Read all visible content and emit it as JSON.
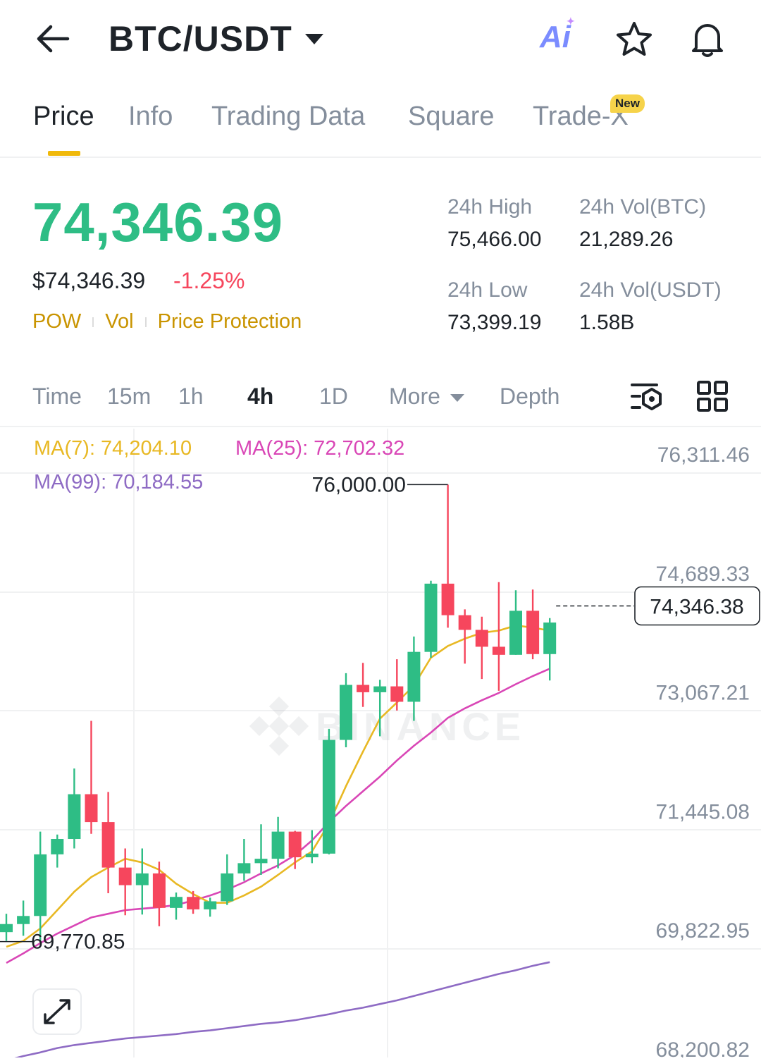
{
  "header": {
    "pair": "BTC/USDT",
    "ai_label": "Ai"
  },
  "tabs": [
    {
      "label": "Price",
      "active": true
    },
    {
      "label": "Info"
    },
    {
      "label": "Trading Data"
    },
    {
      "label": "Square"
    },
    {
      "label": "Trade-X",
      "badge": "New"
    }
  ],
  "ticker": {
    "last_price": "74,346.39",
    "usd_price": "$74,346.39",
    "change_pct": "-1.25%",
    "tags": [
      "POW",
      "Vol",
      "Price Protection"
    ],
    "high_label": "24h High",
    "high": "75,466.00",
    "low_label": "24h Low",
    "low": "73,399.19",
    "vol_btc_label": "24h Vol(BTC)",
    "vol_btc": "21,289.26",
    "vol_usdt_label": "24h Vol(USDT)",
    "vol_usdt": "1.58B"
  },
  "intervals": {
    "items": [
      "Time",
      "15m",
      "1h",
      "4h",
      "1D",
      "More",
      "Depth"
    ],
    "active": "4h"
  },
  "colors": {
    "up": "#2ebd85",
    "down": "#f6465d",
    "ma7": "#e8b823",
    "ma25": "#d946b6",
    "ma99": "#8e6bc4",
    "accent": "#f0b90b"
  },
  "chart_data": {
    "type": "candlestick",
    "interval": "4h",
    "ma7_label": "MA(7): 74,204.10",
    "ma25_label": "MA(25): 72,702.32",
    "ma99_label": "MA(99): 70,184.55",
    "y_ticks": [
      "76,311.46",
      "74,689.33",
      "73,067.21",
      "71,445.08",
      "69,822.95",
      "68,200.82"
    ],
    "ylim": [
      68200.82,
      76311.46
    ],
    "current_price_label": "74,346.38",
    "current_price": 74346.38,
    "high_marker": "76,000.00",
    "low_marker": "69,770.85",
    "watermark": "BINANCE",
    "candles": [
      {
        "o": 69900,
        "c": 70010,
        "h": 70150,
        "l": 69780
      },
      {
        "o": 70010,
        "c": 70120,
        "h": 70330,
        "l": 69850
      },
      {
        "o": 70120,
        "c": 70960,
        "h": 71270,
        "l": 69780
      },
      {
        "o": 70960,
        "c": 71170,
        "h": 71230,
        "l": 70780
      },
      {
        "o": 71170,
        "c": 71780,
        "h": 72130,
        "l": 71040
      },
      {
        "o": 71780,
        "c": 71400,
        "h": 72780,
        "l": 71240
      },
      {
        "o": 71400,
        "c": 70780,
        "h": 71810,
        "l": 70430
      },
      {
        "o": 70780,
        "c": 70540,
        "h": 71040,
        "l": 70130
      },
      {
        "o": 70540,
        "c": 70700,
        "h": 71040,
        "l": 70140
      },
      {
        "o": 70700,
        "c": 70230,
        "h": 70860,
        "l": 69980
      },
      {
        "o": 70230,
        "c": 70380,
        "h": 70440,
        "l": 70070
      },
      {
        "o": 70380,
        "c": 70210,
        "h": 70460,
        "l": 70150
      },
      {
        "o": 70210,
        "c": 70320,
        "h": 70370,
        "l": 70110
      },
      {
        "o": 70320,
        "c": 70700,
        "h": 70960,
        "l": 70270
      },
      {
        "o": 70700,
        "c": 70840,
        "h": 71170,
        "l": 70600
      },
      {
        "o": 70840,
        "c": 70900,
        "h": 71370,
        "l": 70680
      },
      {
        "o": 70900,
        "c": 71270,
        "h": 71470,
        "l": 70770
      },
      {
        "o": 71270,
        "c": 70920,
        "h": 71280,
        "l": 70760
      },
      {
        "o": 70920,
        "c": 70970,
        "h": 71290,
        "l": 70840
      },
      {
        "o": 70970,
        "c": 72520,
        "h": 72670,
        "l": 70960
      },
      {
        "o": 72520,
        "c": 73270,
        "h": 73430,
        "l": 72420
      },
      {
        "o": 73270,
        "c": 73170,
        "h": 73570,
        "l": 72970
      },
      {
        "o": 73170,
        "c": 73250,
        "h": 73340,
        "l": 72570
      },
      {
        "o": 73250,
        "c": 73040,
        "h": 73620,
        "l": 72920
      },
      {
        "o": 73040,
        "c": 73720,
        "h": 73930,
        "l": 72780
      },
      {
        "o": 73720,
        "c": 74650,
        "h": 74690,
        "l": 73640
      },
      {
        "o": 74650,
        "c": 74220,
        "h": 76000,
        "l": 74050
      },
      {
        "o": 74220,
        "c": 74020,
        "h": 74300,
        "l": 73560
      },
      {
        "o": 74020,
        "c": 73790,
        "h": 74200,
        "l": 73350
      },
      {
        "o": 73790,
        "c": 73680,
        "h": 74670,
        "l": 73190
      },
      {
        "o": 73680,
        "c": 74280,
        "h": 74560,
        "l": 73680
      },
      {
        "o": 74280,
        "c": 73690,
        "h": 74570,
        "l": 73620
      },
      {
        "o": 73690,
        "c": 74120,
        "h": 74180,
        "l": 73330
      }
    ],
    "ma7": [
      69700,
      69780,
      69950,
      70200,
      70450,
      70650,
      70780,
      70900,
      70850,
      70750,
      70560,
      70420,
      70300,
      70300,
      70400,
      70520,
      70680,
      70850,
      71000,
      71380,
      71890,
      72360,
      72810,
      73030,
      73260,
      73640,
      73800,
      73900,
      73980,
      74010,
      74080,
      74050,
      74010
    ],
    "ma25": [
      69480,
      69610,
      69750,
      69880,
      69990,
      70100,
      70150,
      70200,
      70220,
      70240,
      70270,
      70330,
      70400,
      70480,
      70580,
      70700,
      70810,
      70950,
      71150,
      71400,
      71620,
      71820,
      72020,
      72240,
      72440,
      72620,
      72820,
      72950,
      73060,
      73160,
      73280,
      73390,
      73490
    ],
    "ma99": [
      68150,
      68210,
      68260,
      68320,
      68360,
      68390,
      68420,
      68450,
      68470,
      68490,
      68510,
      68540,
      68560,
      68590,
      68620,
      68650,
      68670,
      68700,
      68740,
      68780,
      68830,
      68870,
      68920,
      68970,
      69030,
      69090,
      69150,
      69210,
      69270,
      69330,
      69380,
      69440,
      69490
    ]
  }
}
